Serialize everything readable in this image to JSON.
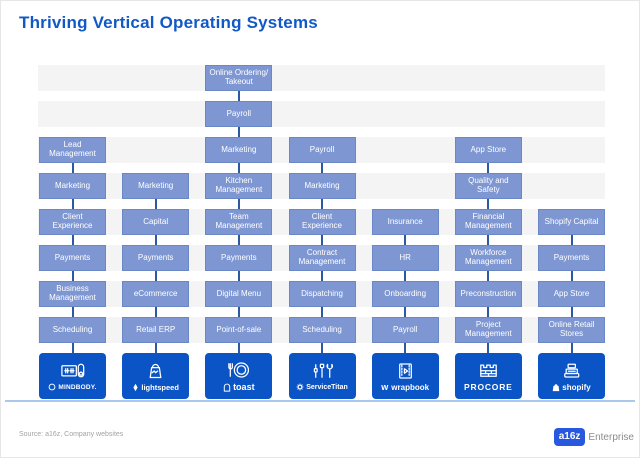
{
  "title": "Thriving Vertical Operating Systems",
  "footer": {
    "source": "Source: a16z, Company websites",
    "brand_badge": "a16z",
    "brand_name": "Enterprise"
  },
  "colors": {
    "title_blue": "#1159c7",
    "feature_box_fill": "#7e97d2",
    "feature_box_border": "#6a87c8",
    "row_band": "#f4f4f4",
    "connector": "#2b5aa0",
    "logo_box_blue": "#0b54c6",
    "baseline_rule": "#aac7ec",
    "brand_badge_blue": "#2858dd"
  },
  "grid": {
    "row_count": 8,
    "column_count": 7
  },
  "columns": [
    {
      "id": "mindbody",
      "logo": "MINDBODY.",
      "cells": [
        null,
        null,
        "Lead Management",
        "Marketing",
        "Client Experience",
        "Payments",
        "Business Management",
        "Scheduling"
      ]
    },
    {
      "id": "lightspeed",
      "logo": "lightspeed",
      "cells": [
        null,
        null,
        null,
        "Marketing",
        "Capital",
        "Payments",
        "eCommerce",
        "Retail ERP"
      ]
    },
    {
      "id": "toast",
      "logo": "toast",
      "cells": [
        "Online Ordering/ Takeout",
        "Payroll",
        "Marketing",
        "Kitchen Management",
        "Team Management",
        "Payments",
        "Digital Menu",
        "Point-of-sale"
      ]
    },
    {
      "id": "servicetitan",
      "logo": "ServiceTitan",
      "cells": [
        null,
        null,
        "Payroll",
        "Marketing",
        "Client Experience",
        "Contract Management",
        "Dispatching",
        "Scheduling"
      ]
    },
    {
      "id": "wrapbook",
      "logo": "wrapbook",
      "logo_prefix": "w",
      "cells": [
        null,
        null,
        null,
        null,
        "Insurance",
        "HR",
        "Onboarding",
        "Payroll"
      ]
    },
    {
      "id": "procore",
      "logo": "PROCORE",
      "cells": [
        null,
        null,
        "App Store",
        "Quality and Safety",
        "Financial Management",
        "Workforce Management",
        "Preconstruction",
        "Project Management"
      ]
    },
    {
      "id": "shopify",
      "logo": "shopify",
      "cells": [
        null,
        null,
        null,
        null,
        "Shopify Capital",
        "Payments",
        "App Store",
        "Online Retail Stores"
      ]
    }
  ]
}
